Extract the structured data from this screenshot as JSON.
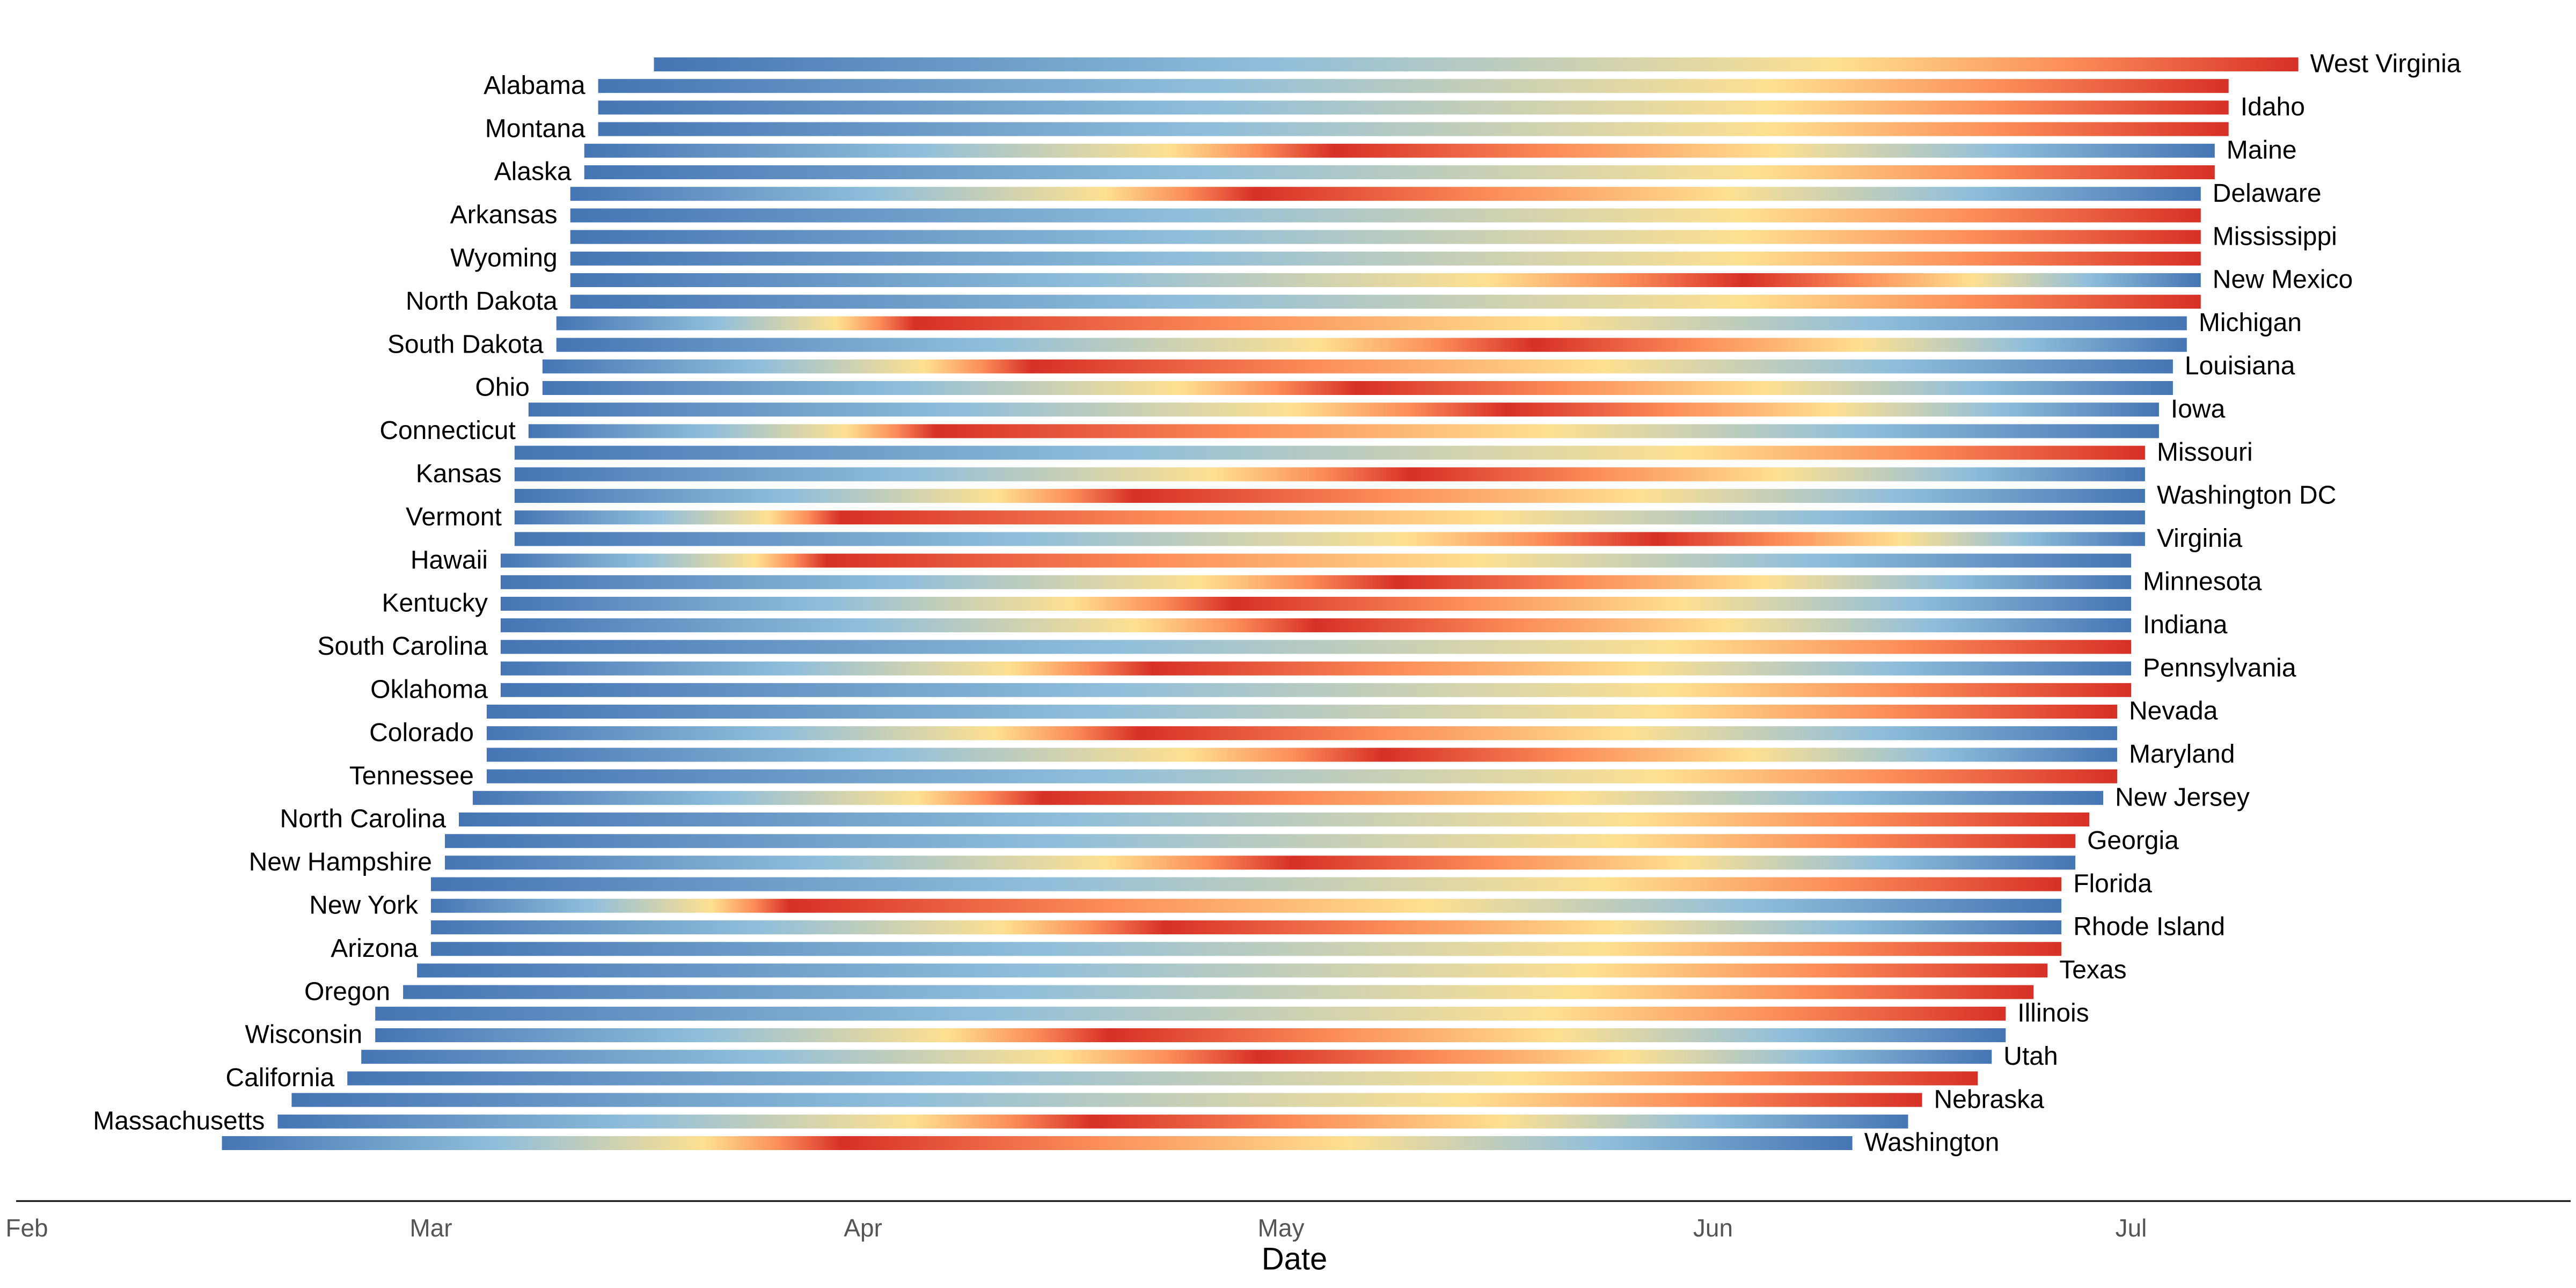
{
  "chart_data": {
    "type": "bar",
    "subtype": "horizontal-timeline-gradient",
    "xlabel": "Date",
    "xlim": [
      "2020-02-01",
      "2020-07-31"
    ],
    "x_ticks": [
      {
        "date": "2020-02-01",
        "label": "Feb"
      },
      {
        "date": "2020-03-01",
        "label": "Mar"
      },
      {
        "date": "2020-04-01",
        "label": "Apr"
      },
      {
        "date": "2020-05-01",
        "label": "May"
      },
      {
        "date": "2020-06-01",
        "label": "Jun"
      },
      {
        "date": "2020-07-01",
        "label": "Jul"
      }
    ],
    "grid": false,
    "legend": "none",
    "palette": [
      "#4575b4",
      "#91bfdb",
      "#fee090",
      "#fc8d59",
      "#d73027"
    ],
    "bars": [
      {
        "state": "West Virginia",
        "start": "2020-03-17",
        "end": "2020-07-13",
        "peak_at": 1.0,
        "label_side": "right"
      },
      {
        "state": "Alabama",
        "start": "2020-03-13",
        "end": "2020-07-08",
        "peak_at": 1.0,
        "label_side": "left"
      },
      {
        "state": "Idaho",
        "start": "2020-03-13",
        "end": "2020-07-08",
        "peak_at": 1.0,
        "label_side": "right"
      },
      {
        "state": "Montana",
        "start": "2020-03-13",
        "end": "2020-07-08",
        "peak_at": 1.0,
        "label_side": "left"
      },
      {
        "state": "Maine",
        "start": "2020-03-12",
        "end": "2020-07-07",
        "peak_at": 0.46,
        "label_side": "right"
      },
      {
        "state": "Alaska",
        "start": "2020-03-12",
        "end": "2020-07-07",
        "peak_at": 1.0,
        "label_side": "left"
      },
      {
        "state": "Delaware",
        "start": "2020-03-11",
        "end": "2020-07-06",
        "peak_at": 0.42,
        "label_side": "right"
      },
      {
        "state": "Arkansas",
        "start": "2020-03-11",
        "end": "2020-07-06",
        "peak_at": 1.0,
        "label_side": "left"
      },
      {
        "state": "Mississippi",
        "start": "2020-03-11",
        "end": "2020-07-06",
        "peak_at": 1.0,
        "label_side": "right"
      },
      {
        "state": "Wyoming",
        "start": "2020-03-11",
        "end": "2020-07-06",
        "peak_at": 1.0,
        "label_side": "left"
      },
      {
        "state": "New Mexico",
        "start": "2020-03-11",
        "end": "2020-07-06",
        "peak_at": 0.72,
        "label_side": "right"
      },
      {
        "state": "North Dakota",
        "start": "2020-03-11",
        "end": "2020-07-06",
        "peak_at": 1.0,
        "label_side": "left"
      },
      {
        "state": "Michigan",
        "start": "2020-03-10",
        "end": "2020-07-05",
        "peak_at": 0.22,
        "label_side": "right"
      },
      {
        "state": "South Dakota",
        "start": "2020-03-10",
        "end": "2020-07-05",
        "peak_at": 0.6,
        "label_side": "left"
      },
      {
        "state": "Louisiana",
        "start": "2020-03-09",
        "end": "2020-07-04",
        "peak_at": 0.3,
        "label_side": "right"
      },
      {
        "state": "Ohio",
        "start": "2020-03-09",
        "end": "2020-07-04",
        "peak_at": 0.5,
        "label_side": "left"
      },
      {
        "state": "Iowa",
        "start": "2020-03-08",
        "end": "2020-07-03",
        "peak_at": 0.6,
        "label_side": "right"
      },
      {
        "state": "Connecticut",
        "start": "2020-03-08",
        "end": "2020-07-03",
        "peak_at": 0.25,
        "label_side": "left"
      },
      {
        "state": "Missouri",
        "start": "2020-03-07",
        "end": "2020-07-02",
        "peak_at": 1.0,
        "label_side": "right"
      },
      {
        "state": "Kansas",
        "start": "2020-03-07",
        "end": "2020-07-02",
        "peak_at": 0.55,
        "label_side": "left"
      },
      {
        "state": "Washington DC",
        "start": "2020-03-07",
        "end": "2020-07-02",
        "peak_at": 0.38,
        "label_side": "right"
      },
      {
        "state": "Vermont",
        "start": "2020-03-07",
        "end": "2020-07-02",
        "peak_at": 0.2,
        "label_side": "left"
      },
      {
        "state": "Virginia",
        "start": "2020-03-07",
        "end": "2020-07-02",
        "peak_at": 0.7,
        "label_side": "right"
      },
      {
        "state": "Hawaii",
        "start": "2020-03-06",
        "end": "2020-07-01",
        "peak_at": 0.2,
        "label_side": "left"
      },
      {
        "state": "Minnesota",
        "start": "2020-03-06",
        "end": "2020-07-01",
        "peak_at": 0.55,
        "label_side": "right"
      },
      {
        "state": "Kentucky",
        "start": "2020-03-06",
        "end": "2020-07-01",
        "peak_at": 0.45,
        "label_side": "left"
      },
      {
        "state": "Indiana",
        "start": "2020-03-06",
        "end": "2020-07-01",
        "peak_at": 0.5,
        "label_side": "right"
      },
      {
        "state": "South Carolina",
        "start": "2020-03-06",
        "end": "2020-07-01",
        "peak_at": 1.0,
        "label_side": "left"
      },
      {
        "state": "Pennsylvania",
        "start": "2020-03-06",
        "end": "2020-07-01",
        "peak_at": 0.4,
        "label_side": "right"
      },
      {
        "state": "Oklahoma",
        "start": "2020-03-06",
        "end": "2020-07-01",
        "peak_at": 1.0,
        "label_side": "left"
      },
      {
        "state": "Nevada",
        "start": "2020-03-05",
        "end": "2020-06-30",
        "peak_at": 1.0,
        "label_side": "right"
      },
      {
        "state": "Colorado",
        "start": "2020-03-05",
        "end": "2020-06-30",
        "peak_at": 0.4,
        "label_side": "left"
      },
      {
        "state": "Maryland",
        "start": "2020-03-05",
        "end": "2020-06-30",
        "peak_at": 0.55,
        "label_side": "right"
      },
      {
        "state": "Tennessee",
        "start": "2020-03-05",
        "end": "2020-06-30",
        "peak_at": 1.0,
        "label_side": "left"
      },
      {
        "state": "New Jersey",
        "start": "2020-03-04",
        "end": "2020-06-29",
        "peak_at": 0.35,
        "label_side": "right"
      },
      {
        "state": "North Carolina",
        "start": "2020-03-03",
        "end": "2020-06-28",
        "peak_at": 1.0,
        "label_side": "left"
      },
      {
        "state": "Georgia",
        "start": "2020-03-02",
        "end": "2020-06-27",
        "peak_at": 1.0,
        "label_side": "right"
      },
      {
        "state": "New Hampshire",
        "start": "2020-03-02",
        "end": "2020-06-27",
        "peak_at": 0.52,
        "label_side": "left"
      },
      {
        "state": "Florida",
        "start": "2020-03-01",
        "end": "2020-06-26",
        "peak_at": 1.0,
        "label_side": "right"
      },
      {
        "state": "New York",
        "start": "2020-03-01",
        "end": "2020-06-26",
        "peak_at": 0.22,
        "label_side": "left"
      },
      {
        "state": "Rhode Island",
        "start": "2020-03-01",
        "end": "2020-06-26",
        "peak_at": 0.45,
        "label_side": "right"
      },
      {
        "state": "Arizona",
        "start": "2020-03-01",
        "end": "2020-06-26",
        "peak_at": 1.0,
        "label_side": "left"
      },
      {
        "state": "Texas",
        "start": "2020-02-29",
        "end": "2020-06-25",
        "peak_at": 1.0,
        "label_side": "right"
      },
      {
        "state": "Oregon",
        "start": "2020-02-28",
        "end": "2020-06-24",
        "peak_at": 1.0,
        "label_side": "left"
      },
      {
        "state": "Illinois",
        "start": "2020-02-26",
        "end": "2020-06-22",
        "peak_at": 1.0,
        "label_side": "right"
      },
      {
        "state": "Wisconsin",
        "start": "2020-02-26",
        "end": "2020-06-22",
        "peak_at": 0.45,
        "label_side": "left"
      },
      {
        "state": "Utah",
        "start": "2020-02-25",
        "end": "2020-06-21",
        "peak_at": 0.55,
        "label_side": "right"
      },
      {
        "state": "California",
        "start": "2020-02-24",
        "end": "2020-06-20",
        "peak_at": 1.0,
        "label_side": "left"
      },
      {
        "state": "Nebraska",
        "start": "2020-02-20",
        "end": "2020-06-16",
        "peak_at": 1.0,
        "label_side": "right"
      },
      {
        "state": "Massachusetts",
        "start": "2020-02-19",
        "end": "2020-06-15",
        "peak_at": 0.5,
        "label_side": "left"
      },
      {
        "state": "Washington",
        "start": "2020-02-15",
        "end": "2020-06-11",
        "peak_at": 0.38,
        "label_side": "right"
      }
    ]
  }
}
